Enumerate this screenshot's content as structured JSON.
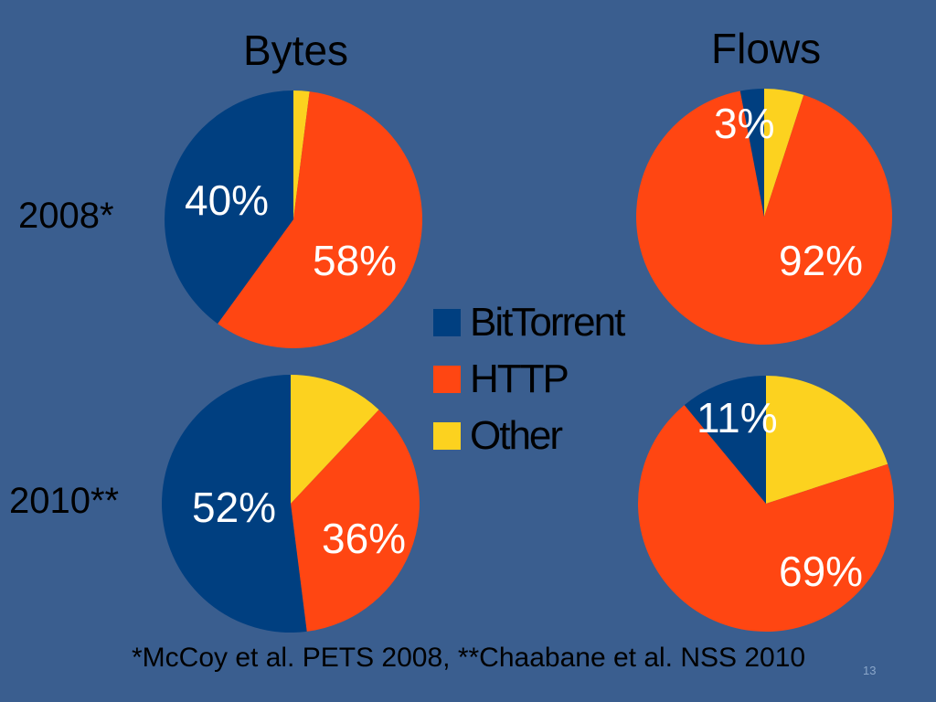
{
  "slide": {
    "column_titles": [
      "Bytes",
      "Flows"
    ],
    "row_labels": [
      "2008*",
      "2010**"
    ],
    "citation": "*McCoy et al. PETS 2008,  **Chaabane et al. NSS 2010",
    "page_number": "13"
  },
  "colors": {
    "background": "#3a5e8f",
    "BitTorrent": "#003f80",
    "HTTP": "#ff4612",
    "Other": "#fcd21f"
  },
  "legend": [
    "BitTorrent",
    "HTTP",
    "Other"
  ],
  "labels": {
    "bytes_2008": [
      "40%",
      "58%"
    ],
    "flows_2008": [
      "3%",
      "92%"
    ],
    "bytes_2010": [
      "52%",
      "36%"
    ],
    "flows_2010": [
      "11%",
      "69%"
    ]
  },
  "chart_data": [
    {
      "type": "pie",
      "title": "Bytes",
      "row": "2008*",
      "categories": [
        "BitTorrent",
        "HTTP",
        "Other"
      ],
      "values": [
        40,
        58,
        2
      ]
    },
    {
      "type": "pie",
      "title": "Flows",
      "row": "2008*",
      "categories": [
        "BitTorrent",
        "HTTP",
        "Other"
      ],
      "values": [
        3,
        92,
        5
      ]
    },
    {
      "type": "pie",
      "title": "Bytes",
      "row": "2010**",
      "categories": [
        "BitTorrent",
        "HTTP",
        "Other"
      ],
      "values": [
        52,
        36,
        12
      ]
    },
    {
      "type": "pie",
      "title": "Flows",
      "row": "2010**",
      "categories": [
        "BitTorrent",
        "HTTP",
        "Other"
      ],
      "values": [
        11,
        69,
        20
      ]
    }
  ]
}
